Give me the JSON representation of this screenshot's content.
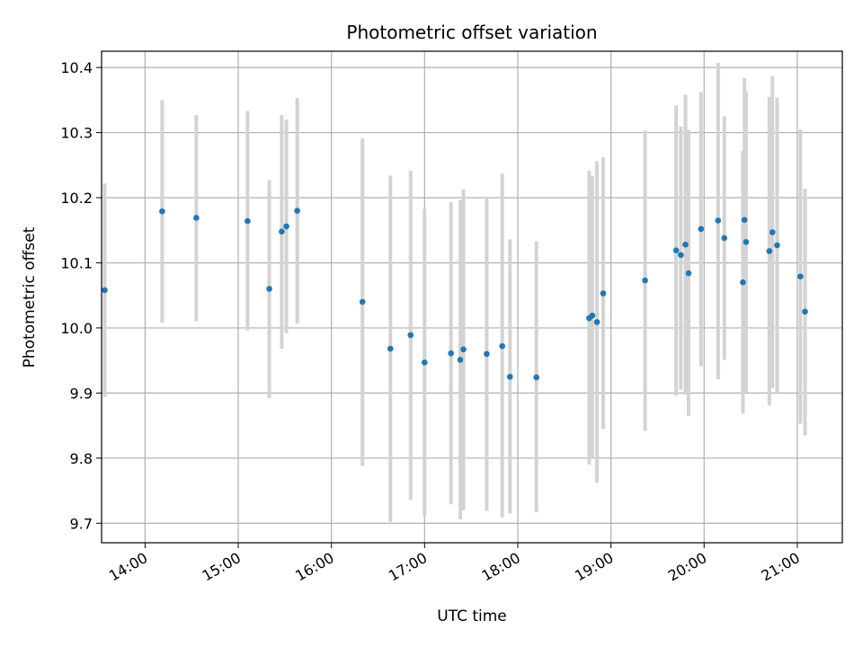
{
  "chart_data": {
    "type": "scatter",
    "title": "Photometric offset variation",
    "xlabel": "UTC time",
    "ylabel": "Photometric offset",
    "x_unit": "UTC time (HH:MM)",
    "xlim": [
      "13:32",
      "21:29"
    ],
    "ylim": [
      9.67,
      10.425
    ],
    "grid": true,
    "x_ticks": [
      "14:00",
      "15:00",
      "16:00",
      "17:00",
      "18:00",
      "19:00",
      "20:00",
      "21:00"
    ],
    "y_ticks": [
      "9.7",
      "9.8",
      "9.9",
      "10.0",
      "10.1",
      "10.2",
      "10.3",
      "10.4"
    ],
    "series": [
      {
        "color": "#1f77b4",
        "error_color": "#d3d3d3",
        "points": [
          {
            "x": "13:34",
            "y": 10.058,
            "ylow": 9.894,
            "yhigh": 10.222
          },
          {
            "x": "14:11",
            "y": 10.179,
            "ylow": 10.008,
            "yhigh": 10.35
          },
          {
            "x": "14:33",
            "y": 10.169,
            "ylow": 10.01,
            "yhigh": 10.327
          },
          {
            "x": "15:06",
            "y": 10.164,
            "ylow": 9.996,
            "yhigh": 10.333
          },
          {
            "x": "15:20",
            "y": 10.06,
            "ylow": 9.892,
            "yhigh": 10.227
          },
          {
            "x": "15:28",
            "y": 10.148,
            "ylow": 9.968,
            "yhigh": 10.327
          },
          {
            "x": "15:31",
            "y": 10.156,
            "ylow": 9.992,
            "yhigh": 10.32
          },
          {
            "x": "15:38",
            "y": 10.18,
            "ylow": 10.007,
            "yhigh": 10.353
          },
          {
            "x": "16:20",
            "y": 10.04,
            "ylow": 9.788,
            "yhigh": 10.291
          },
          {
            "x": "16:38",
            "y": 9.968,
            "ylow": 9.702,
            "yhigh": 10.234
          },
          {
            "x": "16:51",
            "y": 9.989,
            "ylow": 9.736,
            "yhigh": 10.241
          },
          {
            "x": "17:00",
            "y": 9.947,
            "ylow": 9.711,
            "yhigh": 10.183
          },
          {
            "x": "17:17",
            "y": 9.961,
            "ylow": 9.729,
            "yhigh": 10.193
          },
          {
            "x": "17:23",
            "y": 9.951,
            "ylow": 9.706,
            "yhigh": 10.196
          },
          {
            "x": "17:25",
            "y": 9.967,
            "ylow": 9.72,
            "yhigh": 10.213
          },
          {
            "x": "17:40",
            "y": 9.96,
            "ylow": 9.719,
            "yhigh": 10.2
          },
          {
            "x": "17:50",
            "y": 9.972,
            "ylow": 9.709,
            "yhigh": 10.237
          },
          {
            "x": "17:55",
            "y": 9.925,
            "ylow": 9.715,
            "yhigh": 10.136
          },
          {
            "x": "18:12",
            "y": 9.924,
            "ylow": 9.717,
            "yhigh": 10.133
          },
          {
            "x": "18:46",
            "y": 10.015,
            "ylow": 9.79,
            "yhigh": 10.241
          },
          {
            "x": "18:48",
            "y": 10.019,
            "ylow": 9.8,
            "yhigh": 10.233
          },
          {
            "x": "18:51",
            "y": 10.009,
            "ylow": 9.762,
            "yhigh": 10.256
          },
          {
            "x": "18:55",
            "y": 10.053,
            "ylow": 9.845,
            "yhigh": 10.262
          },
          {
            "x": "19:22",
            "y": 10.073,
            "ylow": 9.842,
            "yhigh": 10.303
          },
          {
            "x": "19:42",
            "y": 10.119,
            "ylow": 9.896,
            "yhigh": 10.342
          },
          {
            "x": "19:45",
            "y": 10.112,
            "ylow": 9.905,
            "yhigh": 10.309
          },
          {
            "x": "19:48",
            "y": 10.128,
            "ylow": 9.897,
            "yhigh": 10.358
          },
          {
            "x": "19:50",
            "y": 10.084,
            "ylow": 9.865,
            "yhigh": 10.304
          },
          {
            "x": "19:58",
            "y": 10.152,
            "ylow": 9.941,
            "yhigh": 10.362
          },
          {
            "x": "20:09",
            "y": 10.165,
            "ylow": 9.921,
            "yhigh": 10.407
          },
          {
            "x": "20:13",
            "y": 10.138,
            "ylow": 9.951,
            "yhigh": 10.325
          },
          {
            "x": "20:25",
            "y": 10.07,
            "ylow": 9.868,
            "yhigh": 10.272
          },
          {
            "x": "20:26",
            "y": 10.166,
            "ylow": 9.947,
            "yhigh": 10.384
          },
          {
            "x": "20:27",
            "y": 10.132,
            "ylow": 9.9,
            "yhigh": 10.364
          },
          {
            "x": "20:42",
            "y": 10.118,
            "ylow": 9.881,
            "yhigh": 10.355
          },
          {
            "x": "20:44",
            "y": 10.147,
            "ylow": 9.907,
            "yhigh": 10.387
          },
          {
            "x": "20:47",
            "y": 10.127,
            "ylow": 9.9,
            "yhigh": 10.354
          },
          {
            "x": "21:02",
            "y": 10.079,
            "ylow": 9.853,
            "yhigh": 10.305
          },
          {
            "x": "21:05",
            "y": 10.025,
            "ylow": 9.835,
            "yhigh": 10.214
          }
        ]
      }
    ]
  }
}
